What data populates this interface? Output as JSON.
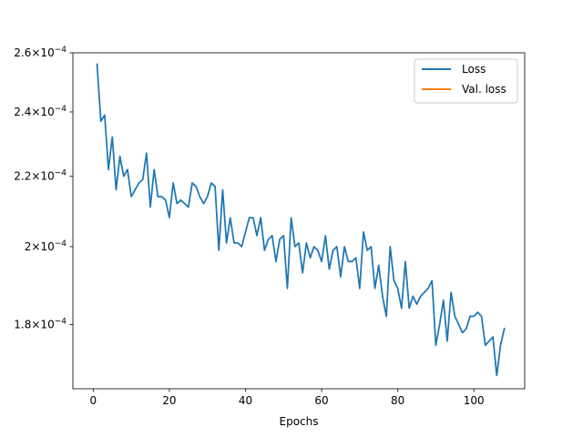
{
  "chart_data": {
    "type": "line",
    "title": "",
    "xlabel": "Epochs",
    "ylabel": "",
    "yscale": "log",
    "xlim": [
      -5.35,
      113.35
    ],
    "ylim": [
      0.000165,
      0.00026
    ],
    "xticks": [
      0,
      20,
      40,
      60,
      80,
      100
    ],
    "yticks": [
      {
        "value": 0.00018,
        "mantissa": "1.8",
        "exp": "−4"
      },
      {
        "value": 0.0002,
        "mantissa": "2",
        "exp": "−4"
      },
      {
        "value": 0.00022,
        "mantissa": "2.2",
        "exp": "−4"
      },
      {
        "value": 0.00024,
        "mantissa": "2.4",
        "exp": "−4"
      },
      {
        "value": 0.00026,
        "mantissa": "2.6",
        "exp": "−4"
      }
    ],
    "grid": false,
    "legend_position": "top-right",
    "series": [
      {
        "name": "Loss",
        "color": "#1f77b4",
        "x": [
          1,
          2,
          3,
          4,
          5,
          6,
          7,
          8,
          9,
          10,
          11,
          12,
          13,
          14,
          15,
          16,
          17,
          18,
          19,
          20,
          21,
          22,
          23,
          24,
          25,
          26,
          27,
          28,
          29,
          30,
          31,
          32,
          33,
          34,
          35,
          36,
          37,
          38,
          39,
          40,
          41,
          42,
          43,
          44,
          45,
          46,
          47,
          48,
          49,
          50,
          51,
          52,
          53,
          54,
          55,
          56,
          57,
          58,
          59,
          60,
          61,
          62,
          63,
          64,
          65,
          66,
          67,
          68,
          69,
          70,
          71,
          72,
          73,
          74,
          75,
          76,
          77,
          78,
          79,
          80,
          81,
          82,
          83,
          84,
          85,
          86,
          87,
          88,
          89,
          90,
          91,
          92,
          93,
          94,
          95,
          96,
          97,
          98,
          99,
          100,
          101,
          102,
          103,
          104,
          105,
          106,
          107,
          108
        ],
        "values": [
          0.000256,
          0.000237,
          0.000239,
          0.000222,
          0.000232,
          0.000216,
          0.000226,
          0.00022,
          0.000222,
          0.000214,
          0.000216,
          0.000218,
          0.000219,
          0.000227,
          0.000211,
          0.000222,
          0.000214,
          0.000214,
          0.000213,
          0.000208,
          0.000218,
          0.000212,
          0.000213,
          0.000212,
          0.000211,
          0.000218,
          0.000217,
          0.000214,
          0.000212,
          0.000214,
          0.000218,
          0.000217,
          0.000199,
          0.000216,
          0.000201,
          0.000208,
          0.000201,
          0.000201,
          0.0002,
          0.000204,
          0.000208,
          0.000208,
          0.000203,
          0.000208,
          0.000199,
          0.000202,
          0.000203,
          0.000196,
          0.000202,
          0.000203,
          0.000189,
          0.000208,
          0.0002,
          0.000201,
          0.000193,
          0.000201,
          0.000197,
          0.0002,
          0.000199,
          0.000196,
          0.000203,
          0.000194,
          0.000199,
          0.0002,
          0.000192,
          0.0002,
          0.000196,
          0.000196,
          0.000197,
          0.000189,
          0.000204,
          0.000199,
          0.0002,
          0.000189,
          0.000195,
          0.000187,
          0.000182,
          0.0002,
          0.000191,
          0.000189,
          0.000184,
          0.000196,
          0.000184,
          0.000187,
          0.000185,
          0.000187,
          0.000188,
          0.000189,
          0.000191,
          0.000175,
          0.00018,
          0.000186,
          0.000176,
          0.000188,
          0.000182,
          0.00018,
          0.000178,
          0.000179,
          0.000182,
          0.000182,
          0.000183,
          0.000182,
          0.000175,
          0.000176,
          0.000177,
          0.000168,
          0.000175,
          0.000179
        ]
      },
      {
        "name": "Val. loss",
        "color": "#ff7f0e",
        "x": [],
        "values": []
      }
    ]
  }
}
